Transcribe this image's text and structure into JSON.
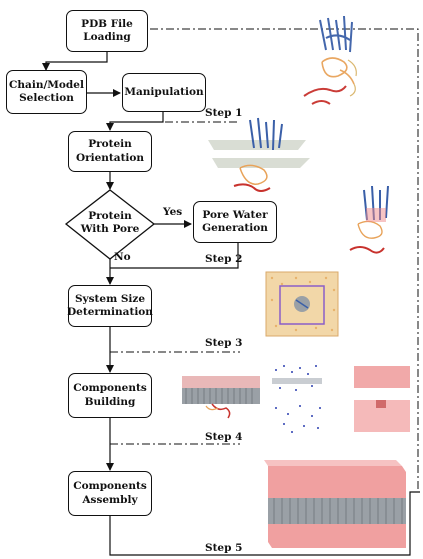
{
  "boxes": {
    "pdb_loading": "PDB File Loading",
    "chain_selection": "Chain/Model Selection",
    "manipulation": "Manipulation",
    "protein_orientation": "Protein Orientation",
    "protein_with_pore": "Protein With Pore",
    "pore_water": "Pore Water Generation",
    "system_size": "System Size Determination",
    "components_building": "Components Building",
    "components_assembly": "Components Assembly"
  },
  "labels": {
    "yes": "Yes",
    "no": "No",
    "step1": "Step 1",
    "step2": "Step 2",
    "step3": "Step 3",
    "step4": "Step 4",
    "step5": "Step 5"
  },
  "colors": {
    "protein_blue": "#3a5fa8",
    "protein_red": "#c8322d",
    "protein_orange": "#e8a35a",
    "membrane_gray": "#9aa0a6",
    "water_pink": "#ef8a8a",
    "ion_blue": "#2b3fb0"
  }
}
